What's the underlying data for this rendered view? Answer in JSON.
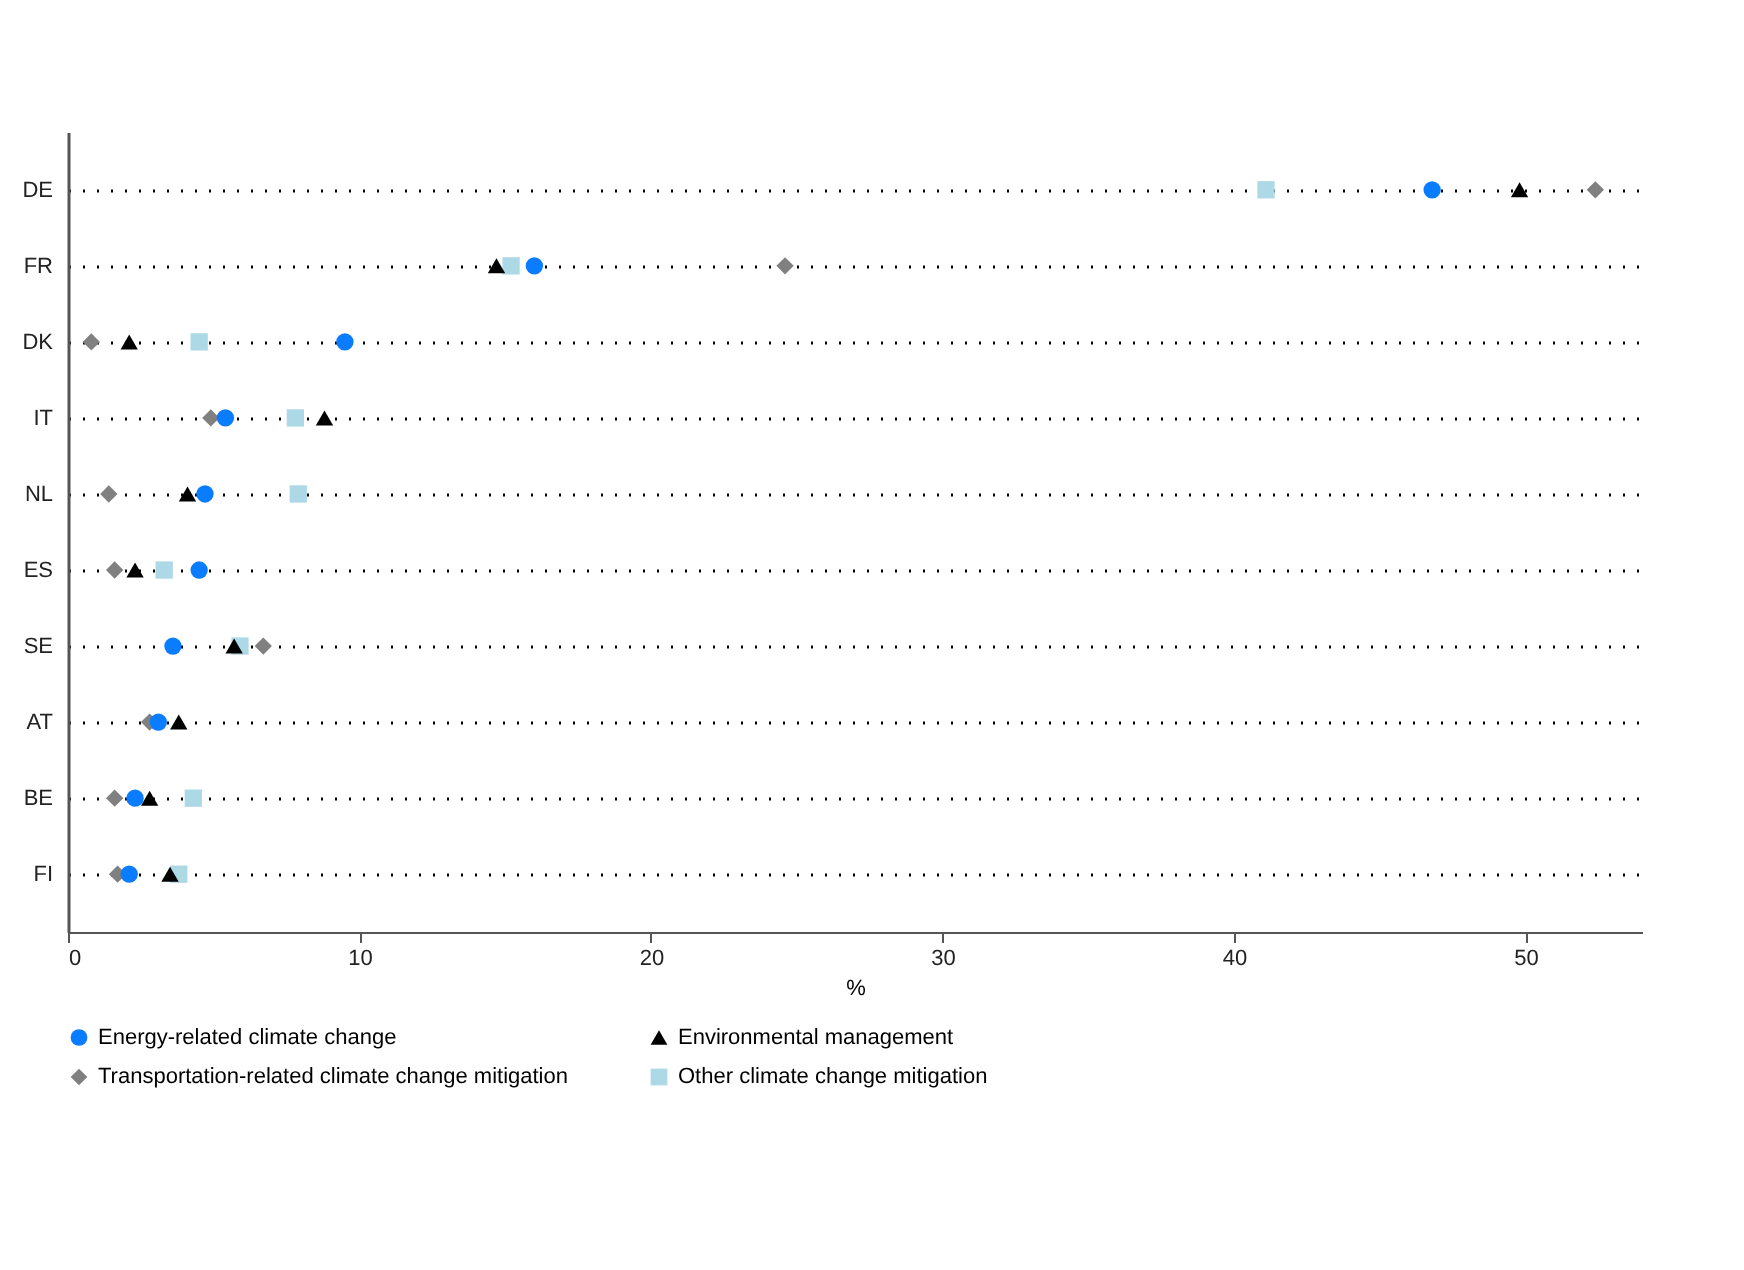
{
  "chart_data": {
    "type": "scatter",
    "orientation": "horizontal",
    "xlabel": "%",
    "categories": [
      "DE",
      "FR",
      "DK",
      "IT",
      "NL",
      "ES",
      "SE",
      "AT",
      "BE",
      "FI"
    ],
    "xlim": [
      0,
      54
    ],
    "xticks": [
      0,
      10,
      20,
      30,
      40,
      50
    ],
    "grid": "y",
    "legend": "bottom",
    "series": [
      {
        "name": "Energy-related climate change",
        "color": "#0a7cff",
        "marker": "circle",
        "values": [
          46.8,
          16.0,
          9.5,
          5.4,
          4.7,
          4.5,
          3.6,
          3.1,
          2.3,
          2.1
        ]
      },
      {
        "name": "Environmental management",
        "color": "#000000",
        "marker": "triangle",
        "values": [
          49.8,
          14.7,
          2.1,
          8.8,
          4.1,
          2.3,
          5.7,
          3.8,
          2.8,
          3.5
        ]
      },
      {
        "name": "Transportation-related climate change mitigation",
        "color": "#808080",
        "marker": "diamond",
        "values": [
          52.4,
          24.6,
          0.8,
          4.9,
          1.4,
          1.6,
          6.7,
          2.8,
          1.6,
          1.7
        ]
      },
      {
        "name": "Other climate change mitigation",
        "color": "#add8e6",
        "marker": "square",
        "values": [
          41.1,
          15.2,
          4.5,
          7.8,
          7.9,
          3.3,
          5.9,
          null,
          4.3,
          3.8
        ]
      }
    ]
  }
}
